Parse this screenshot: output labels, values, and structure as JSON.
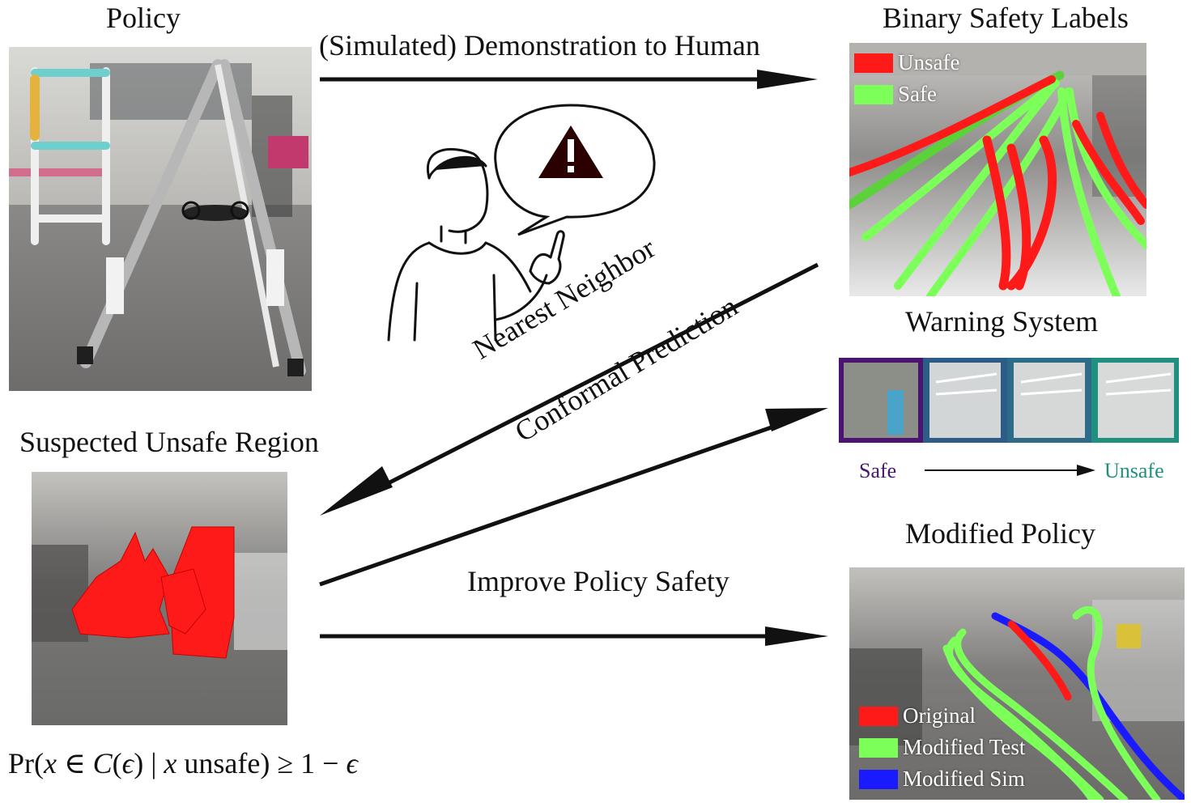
{
  "labels": {
    "policy": "Policy",
    "binary_safety": "Binary Safety Labels",
    "demo_arrow": "(Simulated) Demonstration to Human",
    "nn_line1": "Nearest Neighbor",
    "nn_line2": "Conformal Prediction",
    "warning_system": "Warning System",
    "suspected": "Suspected Unsafe Region",
    "modified_policy": "Modified Policy",
    "improve": "Improve Policy Safety",
    "scale_safe": "Safe",
    "scale_unsafe": "Unsafe"
  },
  "legend_binary": [
    {
      "label": "Unsafe",
      "color": "#ff1a1a"
    },
    {
      "label": "Safe",
      "color": "#7dff5a"
    }
  ],
  "legend_modified": [
    {
      "label": "Original",
      "color": "#ff1a1a"
    },
    {
      "label": "Modified Test",
      "color": "#7dff5a"
    },
    {
      "label": "Modified Sim",
      "color": "#1a1aff"
    }
  ],
  "formula": {
    "pr": "Pr",
    "x": "x",
    "in": "∈",
    "C": "C",
    "eps": "ϵ",
    "bar": "|",
    "unsafe": "unsafe",
    "geq": "≥",
    "one_minus": "1 −"
  },
  "colors": {
    "safe_purple": "#4a1470",
    "unsafe_teal": "#1f8f80",
    "warning_red": "#2a0000"
  }
}
